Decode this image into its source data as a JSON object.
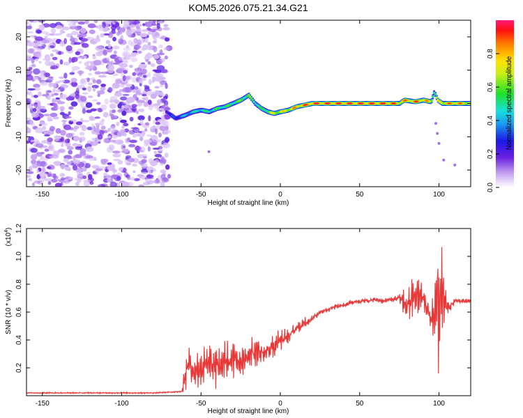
{
  "title": "KOM5.2026.075.21.34.G21",
  "chart_data": [
    {
      "type": "heatmap",
      "name": "spectrogram",
      "xlabel": "Height of straight line (km)",
      "ylabel": "Frequency (Hz)",
      "xlim": [
        -160,
        120
      ],
      "ylim": [
        -25,
        25
      ],
      "xticks": [
        -150,
        -100,
        -50,
        0,
        50,
        100
      ],
      "yticks": [
        -20,
        -10,
        0,
        10,
        20
      ],
      "noise_region_x": [
        -160,
        -70
      ],
      "ridge": {
        "x": [
          -72,
          -66,
          -60,
          -55,
          -50,
          -45,
          -40,
          -35,
          -30,
          -25,
          -20,
          -16,
          -12,
          -8,
          -4,
          0,
          5,
          10,
          15,
          20,
          30,
          40,
          50,
          60,
          70,
          75,
          78,
          85,
          90,
          95,
          97,
          99,
          102,
          110,
          120
        ],
        "y": [
          -2.5,
          -4.5,
          -3.5,
          -2.5,
          -2,
          -2.5,
          -1.5,
          -1,
          0,
          1,
          2.5,
          0,
          -1.5,
          -2.5,
          -3,
          -2.5,
          -2,
          -1,
          -0.5,
          0,
          0,
          0,
          0,
          0,
          0,
          0,
          1,
          0.5,
          1,
          0.5,
          3.5,
          1,
          0,
          0,
          0
        ],
        "intensity": [
          0.25,
          0.3,
          0.4,
          0.45,
          0.5,
          0.5,
          0.55,
          0.55,
          0.55,
          0.6,
          0.6,
          0.55,
          0.5,
          0.65,
          0.75,
          0.75,
          0.8,
          0.85,
          0.9,
          0.95,
          0.95,
          0.95,
          0.95,
          0.95,
          0.95,
          0.85,
          0.85,
          0.9,
          0.9,
          0.75,
          0.55,
          0.7,
          0.85,
          0.9,
          0.8
        ]
      }
    },
    {
      "type": "line",
      "name": "snr",
      "xlabel": "Height of straight line (km)",
      "ylabel": "SNR (10 * v/v)",
      "scale_label": "(x10",
      "scale_exp": "4",
      "xlim": [
        -160,
        120
      ],
      "ylim": [
        0,
        1.2
      ],
      "xticks": [
        -150,
        -100,
        -50,
        0,
        50,
        100
      ],
      "yticks": [
        0.2,
        0.4,
        0.6,
        0.8,
        1.0,
        1.2
      ],
      "series": [
        {
          "name": "SNR",
          "color": "#e83838",
          "x": [
            -160,
            -140,
            -120,
            -100,
            -80,
            -62,
            -60,
            -58,
            -55,
            -50,
            -45,
            -40,
            -35,
            -30,
            -25,
            -20,
            -15,
            -10,
            -5,
            0,
            5,
            10,
            15,
            20,
            25,
            30,
            35,
            40,
            45,
            50,
            55,
            60,
            65,
            70,
            75,
            80,
            85,
            90,
            95,
            98,
            100,
            102,
            105,
            110,
            115,
            120
          ],
          "y": [
            0.02,
            0.02,
            0.02,
            0.02,
            0.02,
            0.03,
            0.15,
            0.25,
            0.18,
            0.2,
            0.22,
            0.2,
            0.25,
            0.25,
            0.25,
            0.3,
            0.32,
            0.3,
            0.35,
            0.4,
            0.42,
            0.48,
            0.52,
            0.55,
            0.6,
            0.62,
            0.64,
            0.65,
            0.67,
            0.68,
            0.68,
            0.69,
            0.68,
            0.69,
            0.7,
            0.65,
            0.72,
            0.7,
            0.55,
            0.6,
            0.65,
            0.75,
            0.62,
            0.68,
            0.68,
            0.68
          ],
          "band": [
            0.005,
            0.005,
            0.005,
            0.005,
            0.005,
            0.005,
            0.15,
            0.15,
            0.12,
            0.15,
            0.18,
            0.15,
            0.15,
            0.15,
            0.12,
            0.12,
            0.12,
            0.1,
            0.1,
            0.08,
            0.06,
            0.05,
            0.04,
            0.03,
            0.02,
            0.02,
            0.02,
            0.02,
            0.02,
            0.02,
            0.02,
            0.02,
            0.02,
            0.02,
            0.03,
            0.15,
            0.15,
            0.12,
            0.1,
            0.4,
            0.55,
            0.4,
            0.12,
            0.02,
            0.02,
            0.02
          ]
        }
      ]
    }
  ],
  "colorbar": {
    "label": "Normalized spectral amplitude",
    "ticks": [
      0.0,
      0.2,
      0.4,
      0.6,
      0.8
    ],
    "range": [
      0,
      1
    ]
  }
}
